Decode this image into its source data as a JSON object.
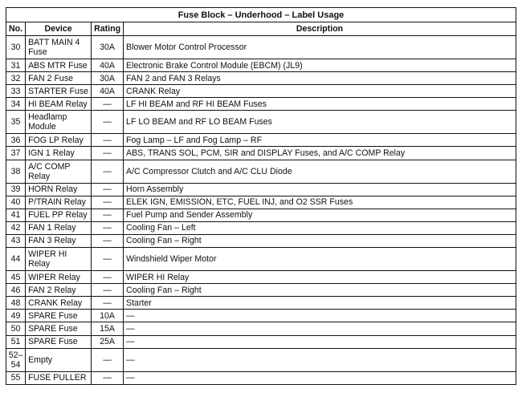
{
  "title": "Fuse Block – Underhood – Label Usage",
  "headers": {
    "no": "No.",
    "device": "Device",
    "rating": "Rating",
    "description": "Description"
  },
  "rows": [
    {
      "no": "30",
      "device": "BATT MAIN 4 Fuse",
      "rating": "30A",
      "description": "Blower Motor Control Processor",
      "tall": true
    },
    {
      "no": "31",
      "device": "ABS MTR Fuse",
      "rating": "40A",
      "description": "Electronic Brake Control Module (EBCM) (JL9)"
    },
    {
      "no": "32",
      "device": "FAN 2 Fuse",
      "rating": "30A",
      "description": "FAN 2 and FAN 3 Relays"
    },
    {
      "no": "33",
      "device": "STARTER Fuse",
      "rating": "40A",
      "description": "CRANK Relay"
    },
    {
      "no": "34",
      "device": "HI BEAM Relay",
      "rating": "—",
      "description": "LF HI BEAM and RF HI BEAM Fuses"
    },
    {
      "no": "35",
      "device": "Headlamp Module",
      "rating": "—",
      "description": "LF LO BEAM and RF LO BEAM Fuses",
      "tall": true
    },
    {
      "no": "36",
      "device": "FOG LP Relay",
      "rating": "—",
      "description": "Fog Lamp – LF and Fog Lamp – RF"
    },
    {
      "no": "37",
      "device": "IGN 1 Relay",
      "rating": "—",
      "description": "ABS, TRANS SOL, PCM, SIR and DISPLAY Fuses, and A/C COMP Relay"
    },
    {
      "no": "38",
      "device": "A/C COMP Relay",
      "rating": "—",
      "description": "A/C Compressor Clutch and A/C CLU Diode",
      "tall": true
    },
    {
      "no": "39",
      "device": "HORN Relay",
      "rating": "—",
      "description": "Horn Assembly"
    },
    {
      "no": "40",
      "device": "P/TRAIN Relay",
      "rating": "—",
      "description": "ELEK IGN, EMISSION, ETC, FUEL INJ, and O2 SSR Fuses"
    },
    {
      "no": "41",
      "device": "FUEL PP Relay",
      "rating": "—",
      "description": "Fuel Pump and Sender Assembly"
    },
    {
      "no": "42",
      "device": "FAN 1 Relay",
      "rating": "—",
      "description": "Cooling Fan – Left"
    },
    {
      "no": "43",
      "device": "FAN 3 Relay",
      "rating": "—",
      "description": "Cooling Fan – Right"
    },
    {
      "no": "44",
      "device": "WIPER HI Relay",
      "rating": "—",
      "description": "Windshield Wiper Motor",
      "tall": true
    },
    {
      "no": "45",
      "device": "WIPER Relay",
      "rating": "—",
      "description": "WIPER HI Relay"
    },
    {
      "no": "46",
      "device": "FAN 2 Relay",
      "rating": "—",
      "description": "Cooling Fan – Right"
    },
    {
      "no": "48",
      "device": "CRANK Relay",
      "rating": "—",
      "description": "Starter"
    },
    {
      "no": "49",
      "device": "SPARE Fuse",
      "rating": "10A",
      "description": "—"
    },
    {
      "no": "50",
      "device": "SPARE Fuse",
      "rating": "15A",
      "description": "—"
    },
    {
      "no": "51",
      "device": "SPARE Fuse",
      "rating": "25A",
      "description": "—"
    },
    {
      "no": "52–54",
      "device": "Empty",
      "rating": "—",
      "description": "—",
      "tall": true
    },
    {
      "no": "55",
      "device": "FUSE PULLER",
      "rating": "—",
      "description": "—"
    }
  ]
}
